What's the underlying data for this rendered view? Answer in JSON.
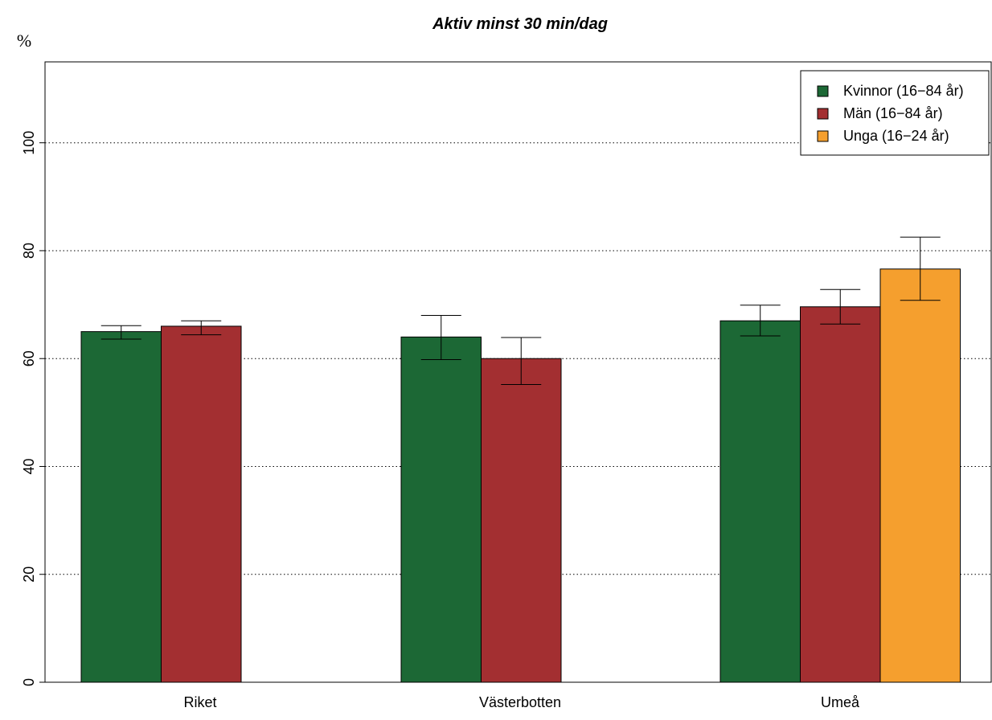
{
  "chart_data": {
    "type": "bar",
    "title": "Aktiv minst 30 min/dag",
    "ylabel": "%",
    "xlabel": "",
    "ylim": [
      0,
      115
    ],
    "yticks": [
      0,
      20,
      40,
      60,
      80,
      100
    ],
    "grid": "horizontal-dotted",
    "legend_position": "top-right",
    "categories": [
      "Riket",
      "Västerbotten",
      "Umeå"
    ],
    "series": [
      {
        "name": "Kvinnor (16−84 år)",
        "color": "#1c6835",
        "values": [
          65,
          64,
          67
        ],
        "err_low": [
          63.6,
          59.8,
          64.2
        ],
        "err_high": [
          66.1,
          68.0,
          69.9
        ]
      },
      {
        "name": "Män (16−84 år)",
        "color": "#a32f31",
        "values": [
          66,
          60,
          69.6
        ],
        "err_low": [
          64.4,
          55.2,
          66.4
        ],
        "err_high": [
          67.0,
          63.9,
          72.8
        ]
      },
      {
        "name": "Unga (16−24 år)",
        "color": "#f59f2e",
        "values": [
          null,
          null,
          76.6
        ],
        "err_low": [
          null,
          null,
          70.8
        ],
        "err_high": [
          null,
          null,
          82.5
        ]
      }
    ]
  }
}
